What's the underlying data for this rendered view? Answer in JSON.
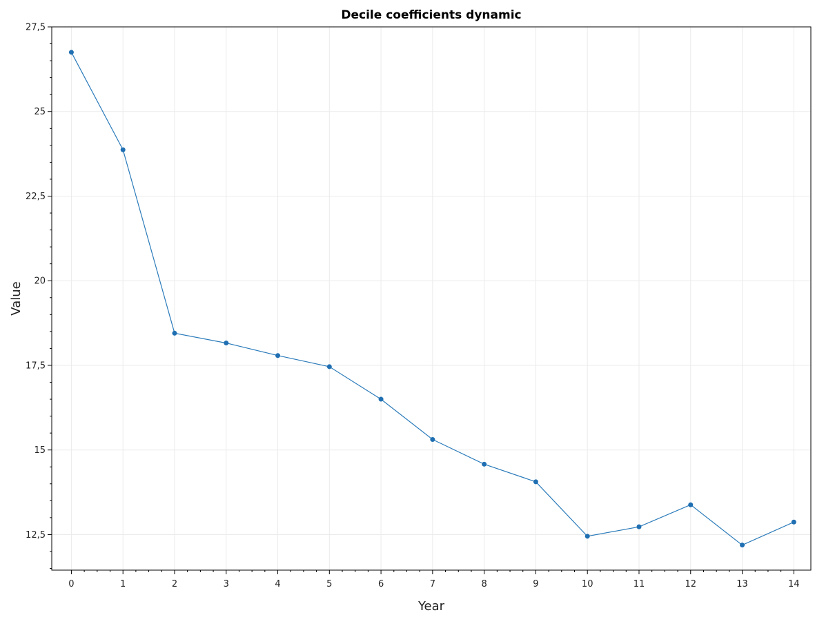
{
  "chart_data": {
    "type": "line",
    "title": "Decile coefficients dynamic",
    "xlabel": "Year",
    "ylabel": "Value",
    "xlim": [
      -0.38,
      14.33
    ],
    "ylim": [
      11.45,
      27.5
    ],
    "x_ticks": [
      0,
      1,
      2,
      3,
      4,
      5,
      6,
      7,
      8,
      9,
      10,
      11,
      12,
      13,
      14
    ],
    "x_tick_labels": [
      "0",
      "1",
      "2",
      "3",
      "4",
      "5",
      "6",
      "7",
      "8",
      "9",
      "10",
      "11",
      "12",
      "13",
      "14"
    ],
    "y_ticks": [
      12.5,
      15,
      17.5,
      20,
      22.5,
      25,
      27.5
    ],
    "y_tick_labels": [
      "12,5",
      "15",
      "17,5",
      "20",
      "22,5",
      "25",
      "27,5"
    ],
    "grid": true,
    "legend": false,
    "colors": {
      "series": "#2b7bba",
      "marker": "#1f6fb2",
      "grid": "#ebebeb",
      "frame": "#000000"
    },
    "series": [
      {
        "x": [
          0,
          1,
          2,
          3,
          4,
          5,
          6,
          7,
          8,
          9,
          10,
          11,
          12,
          13,
          14
        ],
        "values": [
          26.75,
          23.87,
          18.45,
          18.16,
          17.79,
          17.46,
          16.5,
          15.31,
          14.58,
          14.06,
          12.45,
          12.73,
          13.38,
          12.19,
          12.87
        ]
      }
    ]
  }
}
